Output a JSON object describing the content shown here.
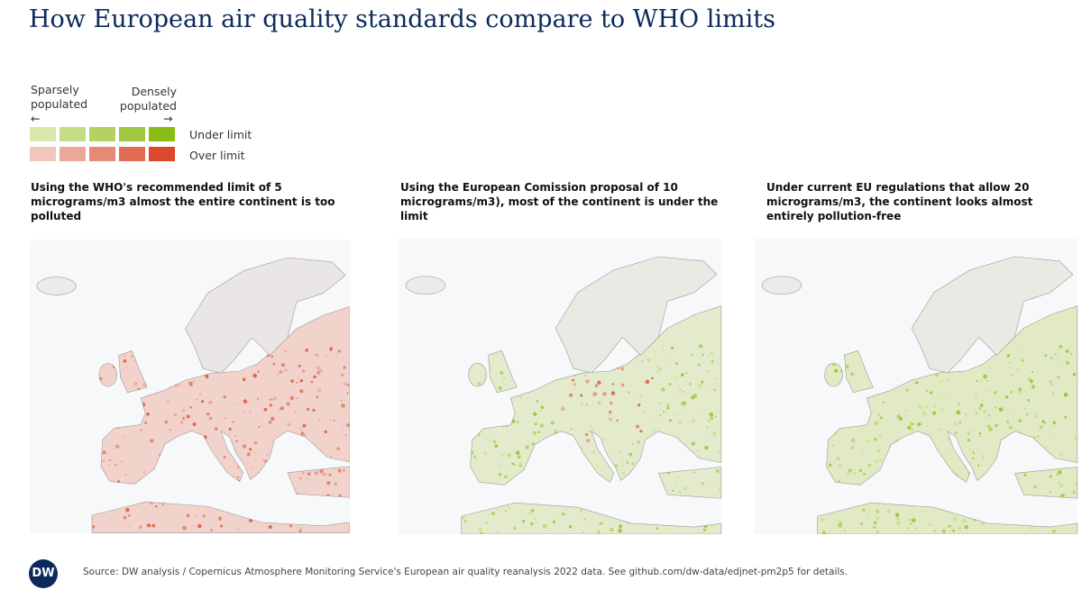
{
  "header": {
    "title": "How European air quality standards compare to WHO limits"
  },
  "legend": {
    "sparse": "Sparsely populated",
    "dense": "Densely populated",
    "arrow_left": "←",
    "arrow_right": "→",
    "under_label": "Under limit",
    "over_label": "Over limit",
    "under_colors": [
      "#d9e7a9",
      "#c6dd88",
      "#b3d264",
      "#a0c842",
      "#8cbd17"
    ],
    "over_colors": [
      "#f2c6bd",
      "#eca898",
      "#e68a77",
      "#e06c54",
      "#d9492a"
    ]
  },
  "panels": [
    {
      "caption": "Using the WHO's recommended limit of 5 micrograms/m3 almost the entire continent is too polluted"
    },
    {
      "caption": "Using the European Comission proposal of 10 micrograms/m3), most of the continent is under the limit"
    },
    {
      "caption": "Under current EU regulations that allow 20 micrograms/m3, the continent looks almost entirely pollution-free"
    }
  ],
  "footer": {
    "logo": "DW",
    "source": "Source: DW analysis / Copernicus Atmosphere Monitoring Service's European air quality reanalysis 2022 data. See github.com/dw-data/edjnet-pm2p5 for details."
  }
}
